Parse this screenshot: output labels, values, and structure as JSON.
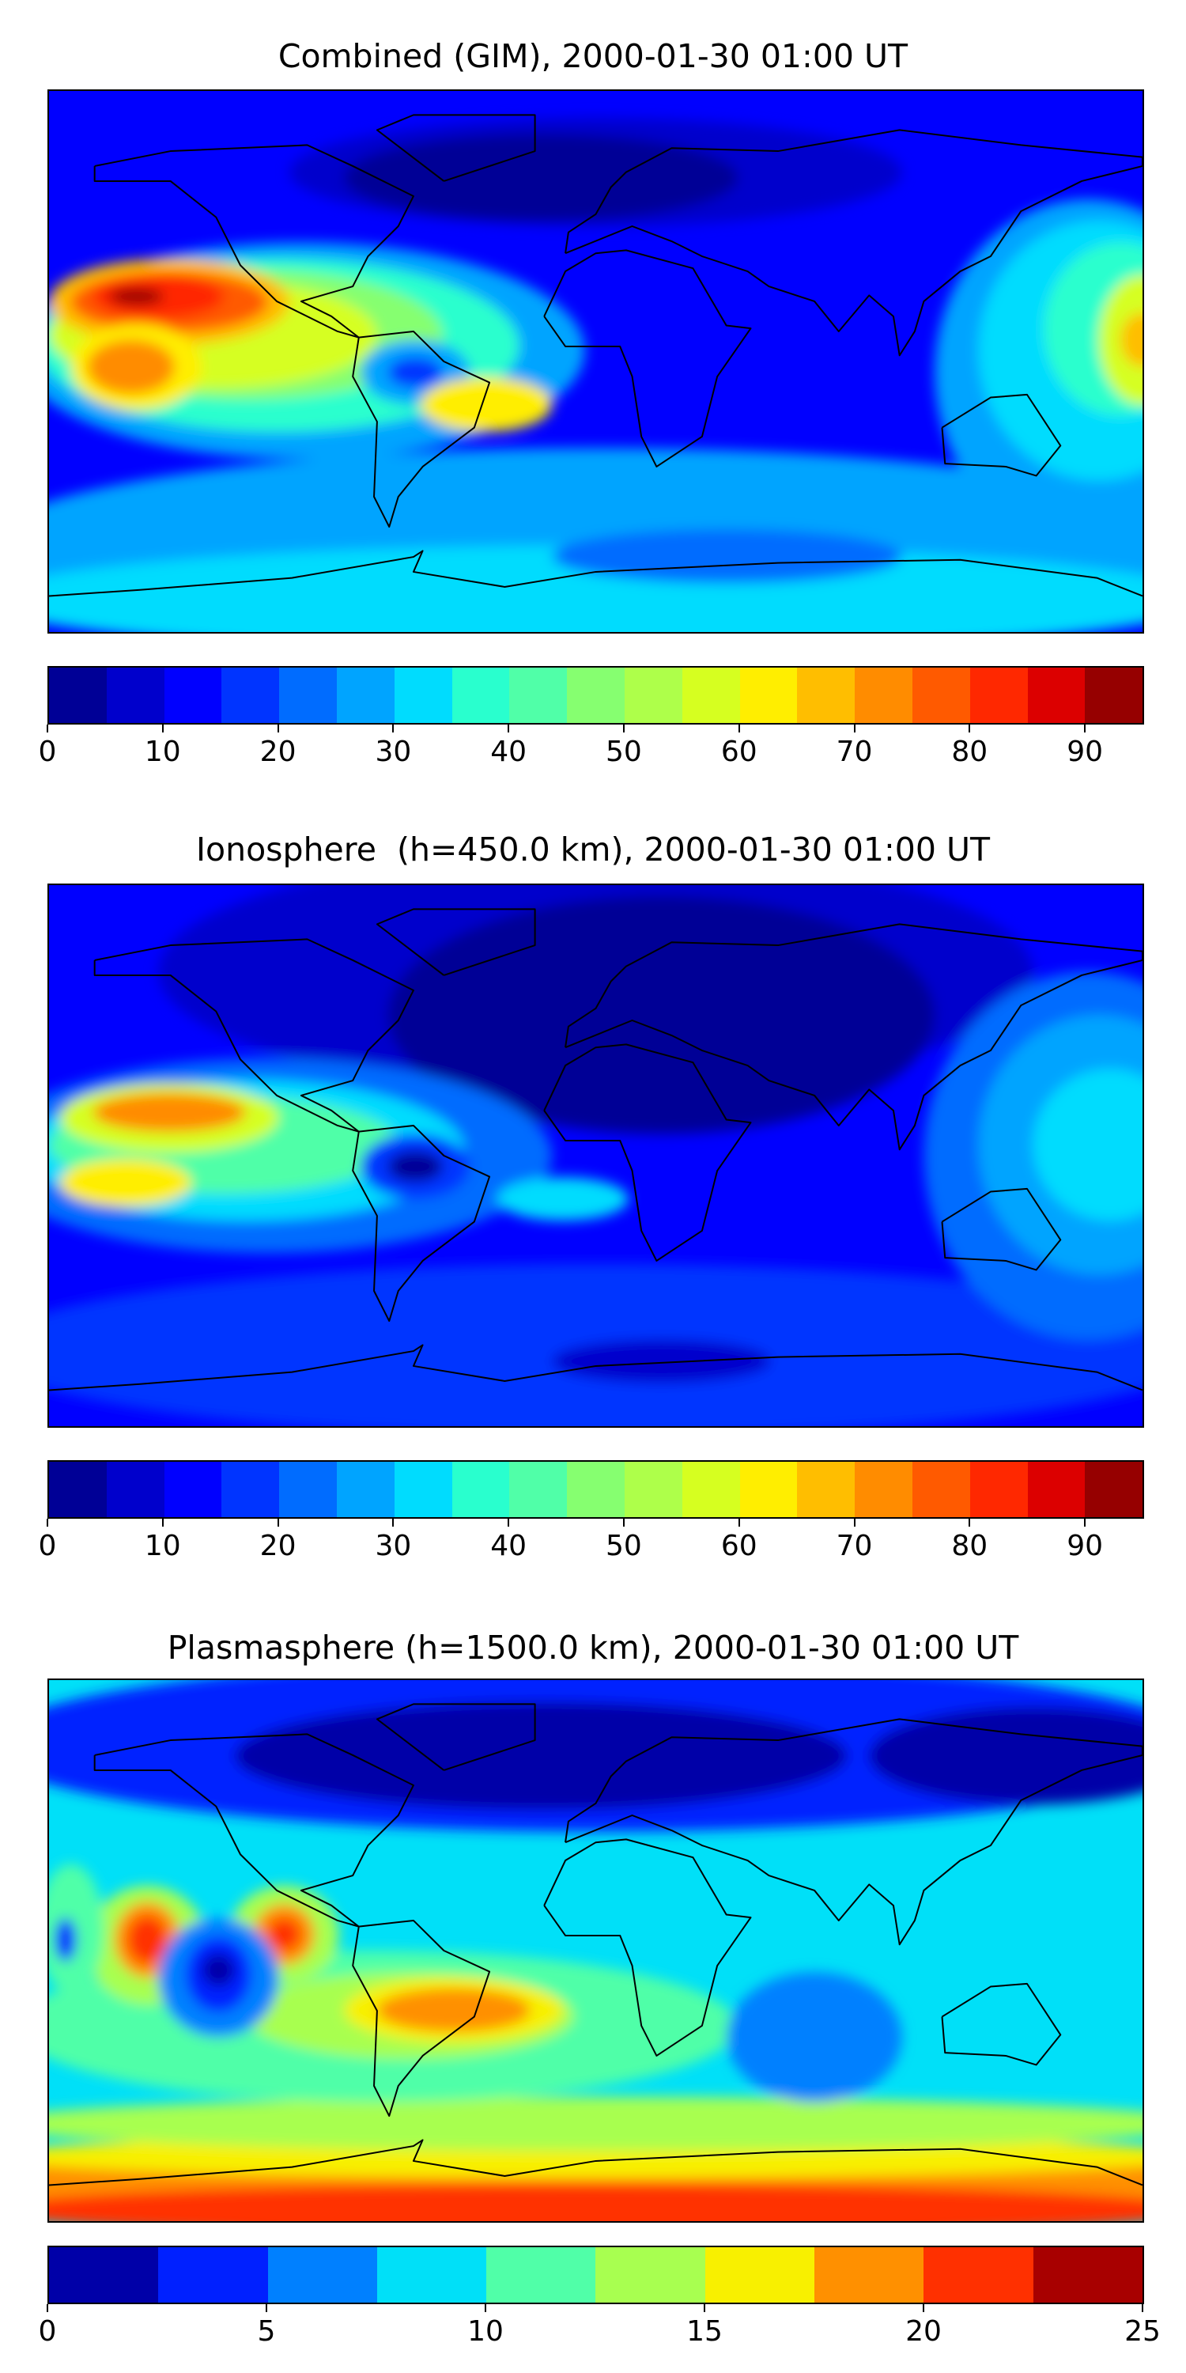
{
  "chart_data": [
    {
      "type": "heatmap",
      "title": "Combined (GIM), 2000-01-30 01:00 UT",
      "colorbar": {
        "levels_min": 0,
        "levels_max": 95,
        "step": 5,
        "ticks": [
          "0",
          "10",
          "20",
          "30",
          "40",
          "50",
          "60",
          "70",
          "80",
          "90"
        ],
        "colors": [
          "#000096",
          "#0000cc",
          "#0000ff",
          "#0034ff",
          "#006cff",
          "#00a4ff",
          "#00dcfe",
          "#29ffce",
          "#50ffa8",
          "#86ff70",
          "#aeff4a",
          "#d6ff20",
          "#ffee00",
          "#ffbe00",
          "#ff8c00",
          "#ff5a00",
          "#ff2800",
          "#dc0000",
          "#960000"
        ]
      },
      "features": {
        "max_region": "central Pacific ~85-90",
        "min_region": "North Atlantic/Europe ~0-10"
      }
    },
    {
      "type": "heatmap",
      "title": "Ionosphere  (h=450.0 km), 2000-01-30 01:00 UT",
      "colorbar": {
        "levels_min": 0,
        "levels_max": 95,
        "step": 5,
        "ticks": [
          "0",
          "10",
          "20",
          "30",
          "40",
          "50",
          "60",
          "70",
          "80",
          "90"
        ],
        "colors": [
          "#000096",
          "#0000cc",
          "#0000ff",
          "#0034ff",
          "#006cff",
          "#00a4ff",
          "#00dcfe",
          "#29ffce",
          "#50ffa8",
          "#86ff70",
          "#aeff4a",
          "#d6ff20",
          "#ffee00",
          "#ffbe00",
          "#ff8c00",
          "#ff5a00",
          "#ff2800",
          "#dc0000",
          "#960000"
        ]
      },
      "features": {
        "max_region": "central Pacific ~65-70",
        "min_region": "Eurasia/Africa ~0-5"
      }
    },
    {
      "type": "heatmap",
      "title": "Plasmasphere (h=1500.0 km), 2000-01-30 01:00 UT",
      "colorbar": {
        "levels_min": 0,
        "levels_max": 25,
        "step": 2.5,
        "ticks": [
          "0",
          "5",
          "10",
          "15",
          "20",
          "25"
        ],
        "colors": [
          "#0000a8",
          "#0020ff",
          "#0080ff",
          "#00e0f8",
          "#50ffa8",
          "#a8ff50",
          "#f8f000",
          "#ff9000",
          "#ff3000",
          "#a80000"
        ]
      },
      "features": {
        "max_region": "Southern Ocean band ~20-22.5",
        "min_region": "Northern high latitudes ~0-2.5"
      }
    }
  ]
}
